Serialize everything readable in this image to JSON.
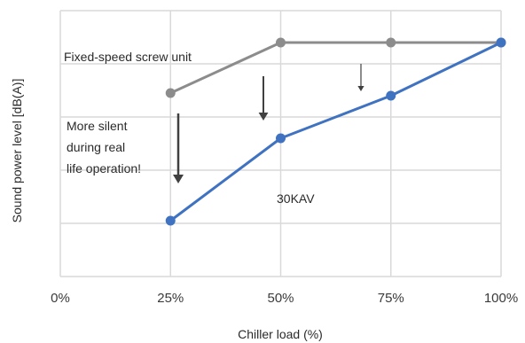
{
  "chart_data": {
    "type": "line",
    "title": "",
    "xlabel": "Chiller load (%)",
    "ylabel": "Sound power level [dB(A)]",
    "x": [
      25,
      50,
      75,
      100
    ],
    "x_tick_labels": [
      "0%",
      "25%",
      "50%",
      "75%",
      "100%"
    ],
    "x_ticks": [
      0,
      25,
      50,
      75,
      100
    ],
    "xlim": [
      0,
      100
    ],
    "ylim": [
      0,
      5
    ],
    "y_tick_labels_shown": false,
    "grid": true,
    "series": [
      {
        "name": "Fixed-speed screw unit",
        "color": "#8c8c8c",
        "values": [
          3.45,
          4.4,
          4.4,
          4.4
        ]
      },
      {
        "name": "30KAV",
        "color": "#3f72c0",
        "values": [
          1.05,
          2.6,
          3.4,
          4.4
        ]
      }
    ],
    "annotations": {
      "more_silent_lines": [
        "More silent",
        "during real",
        "life operation!"
      ]
    },
    "colors": {
      "grid": "#d9d9d9",
      "arrow": "#404040"
    }
  }
}
